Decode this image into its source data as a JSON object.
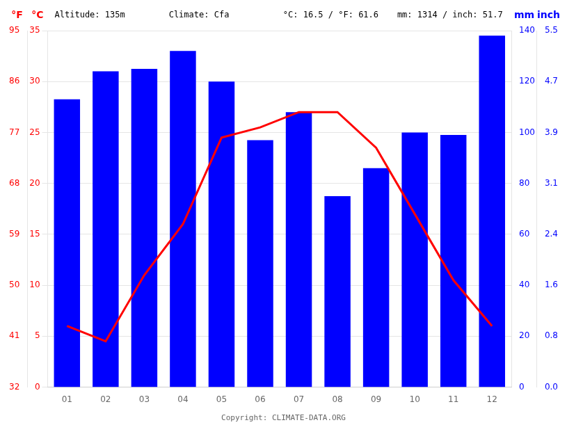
{
  "chart_data": {
    "type": "bar",
    "categories": [
      "01",
      "02",
      "03",
      "04",
      "05",
      "06",
      "07",
      "08",
      "09",
      "10",
      "11",
      "12"
    ],
    "series": [
      {
        "type": "bar",
        "color": "#0000ff",
        "axis": "y2",
        "values": [
          113,
          124,
          125,
          132,
          120,
          97,
          108,
          75,
          86,
          100,
          99,
          138
        ]
      },
      {
        "type": "line",
        "color": "#ff0000",
        "values": [
          6.0,
          4.5,
          11.0,
          16.0,
          24.5,
          25.5,
          27.0,
          27.0,
          23.5,
          17.0,
          10.5,
          6.0
        ]
      }
    ],
    "ylabel": "°C",
    "ylim": [
      0,
      35
    ],
    "yticks": [
      0,
      5,
      10,
      15,
      20,
      25,
      30,
      35
    ],
    "y3label": "°F",
    "y3lim": [
      32,
      95
    ],
    "y3ticks": [
      32,
      41,
      50,
      59,
      68,
      77,
      86,
      95
    ],
    "y2label": "mm",
    "y2lim": [
      0,
      140
    ],
    "y2ticks": [
      0,
      20,
      40,
      60,
      80,
      100,
      120,
      140
    ],
    "y4label": "inch",
    "y4lim": [
      0,
      140
    ],
    "y4ticks": [
      {
        "value": 0,
        "label": "0.0"
      },
      {
        "value": 20,
        "label": "0.8"
      },
      {
        "value": 40,
        "label": "1.6"
      },
      {
        "value": 60,
        "label": "2.4"
      },
      {
        "value": 80,
        "label": "3.1"
      },
      {
        "value": 100,
        "label": "3.9"
      },
      {
        "value": 120,
        "label": "4.7"
      },
      {
        "value": 140,
        "label": "5.5"
      }
    ],
    "grid": true,
    "subtitle": [
      "Altitude: 135m",
      "Climate: Cfa",
      "°C: 16.5 / °F: 61.6",
      "mm: 1314 / inch: 51.7"
    ],
    "annotations": [
      "Copyright: CLIMATE-DATA.ORG"
    ]
  }
}
